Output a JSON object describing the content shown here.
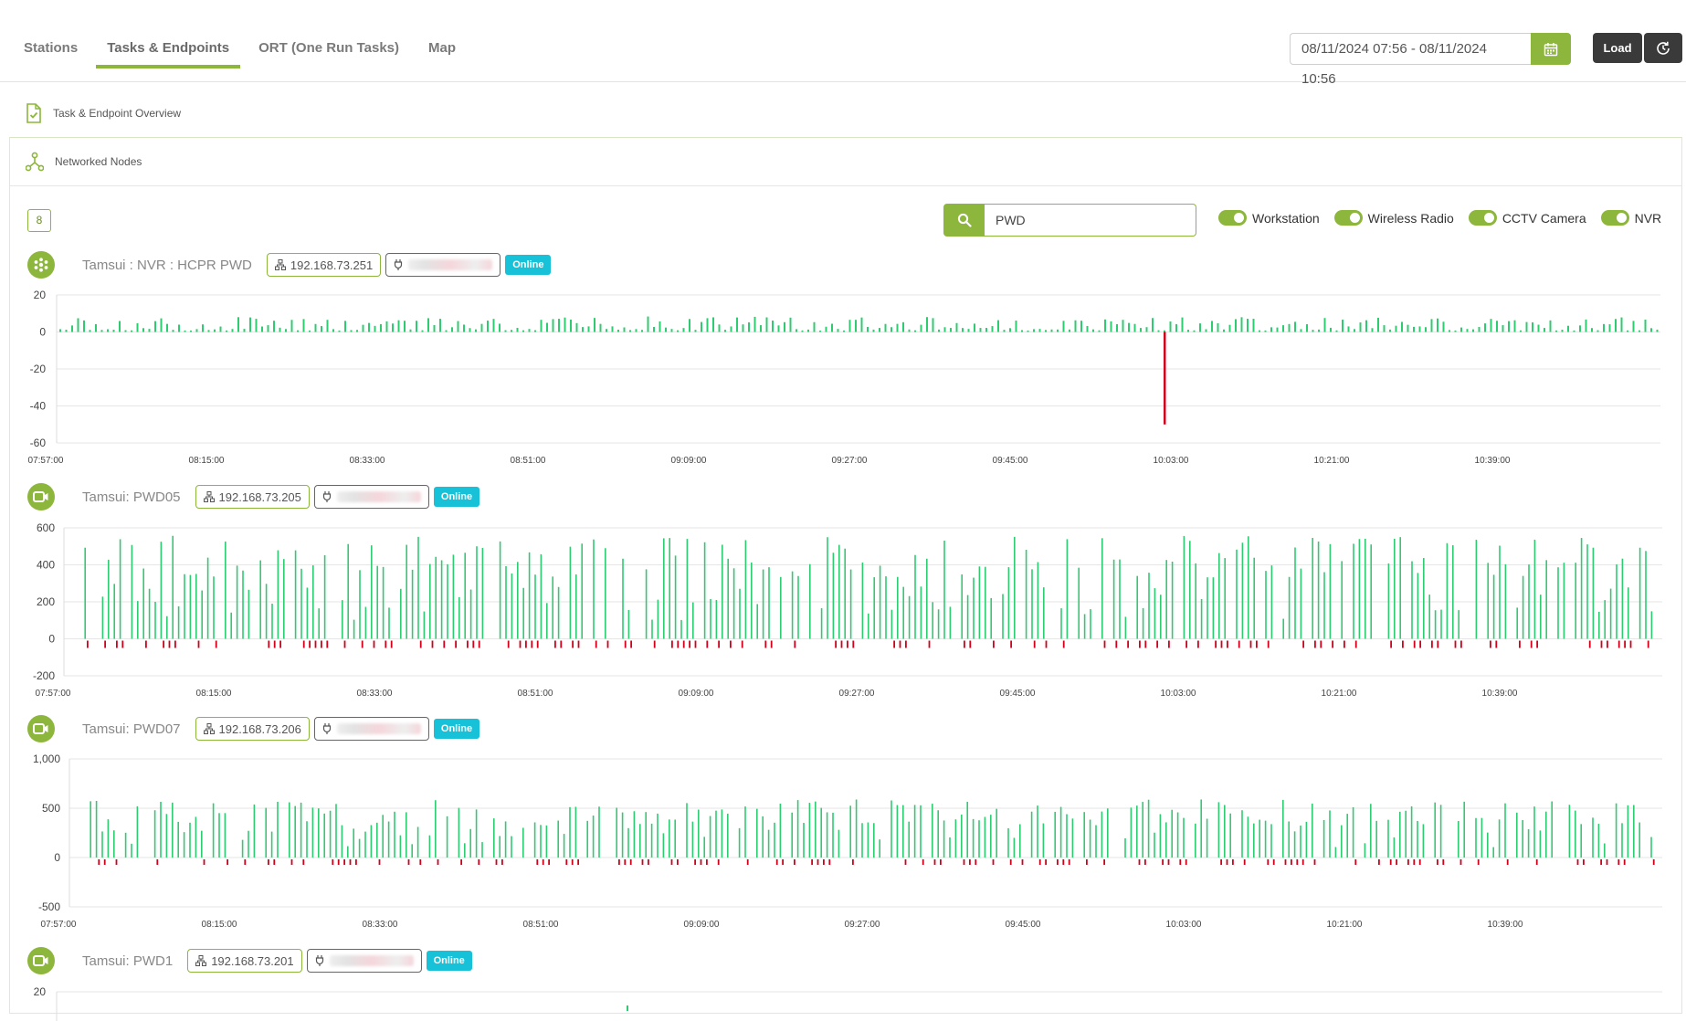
{
  "tabs": [
    {
      "label": "Stations",
      "active": false
    },
    {
      "label": "Tasks & Endpoints",
      "active": true
    },
    {
      "label": "ORT (One Run Tasks)",
      "active": false
    },
    {
      "label": "Map",
      "active": false
    }
  ],
  "toolbar": {
    "date_range": "08/11/2024 07:56 - 08/11/2024 10:56",
    "load_label": "Load"
  },
  "sections": {
    "overview": "Task & Endpoint Overview",
    "networked": "Networked Nodes"
  },
  "node_count": "8",
  "search": {
    "value": "PWD"
  },
  "filters": [
    {
      "label": "Workstation",
      "on": true
    },
    {
      "label": "Wireless Radio",
      "on": true
    },
    {
      "label": "CCTV Camera",
      "on": true
    },
    {
      "label": "NVR",
      "on": true
    }
  ],
  "colors": {
    "accent": "#8cb63c",
    "online": "#17c1d8",
    "bar_positive": "#2ecc71",
    "bar_negative": "#d0021b"
  },
  "x_ticks": [
    "07:57:00",
    "08:15:00",
    "08:33:00",
    "08:51:00",
    "09:09:00",
    "09:27:00",
    "09:45:00",
    "10:03:00",
    "10:21:00",
    "10:39:00"
  ],
  "nodes": [
    {
      "title": "Tamsui : NVR : HCPR PWD",
      "ip": "192.168.73.251",
      "status": "Online",
      "icon": "nvr-icon"
    },
    {
      "title": "Tamsui: PWD05",
      "ip": "192.168.73.205",
      "status": "Online",
      "icon": "camera-icon"
    },
    {
      "title": "Tamsui: PWD07",
      "ip": "192.168.73.206",
      "status": "Online",
      "icon": "camera-icon"
    },
    {
      "title": "Tamsui: PWD1",
      "ip": "192.168.73.201",
      "status": "Online",
      "icon": "camera-icon"
    }
  ],
  "chart_data": [
    {
      "type": "bar",
      "y_ticks": [
        "20",
        "0",
        "-20",
        "-40",
        "-60"
      ],
      "ylim": [
        -60,
        20
      ],
      "x_range": [
        "07:57:00",
        "10:56:00"
      ],
      "grid": true,
      "series": [
        {
          "values_note": "",
          "values": []
        }
      ]
    },
    {
      "type": "bar",
      "y_ticks": [
        "600",
        "400",
        "200",
        "0",
        "-200"
      ],
      "ylim": [
        -200,
        600
      ],
      "x_range": [
        "07:57:00",
        "10:56:00"
      ],
      "grid": true
    },
    {
      "type": "bar",
      "y_ticks": [
        "1,000",
        "500",
        "0",
        "-500"
      ],
      "ylim": [
        -500,
        1000
      ],
      "x_range": [
        "07:57:00",
        "10:56:00"
      ],
      "grid": true
    },
    {
      "type": "bar",
      "y_ticks": [
        "20"
      ],
      "ylim": [
        0,
        20
      ],
      "x_range": [
        "07:57:00",
        "10:56:00"
      ],
      "grid": true
    }
  ]
}
